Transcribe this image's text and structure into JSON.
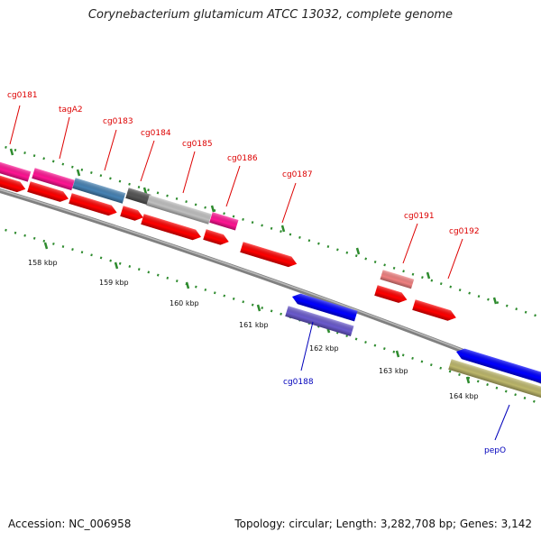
{
  "title": "Corynebacterium glutamicum ATCC 13032, complete genome",
  "footer": {
    "accession": "Accession: NC_006958",
    "stats": "Topology: circular; Length: 3,282,708 bp; Genes: 3,142"
  },
  "colors": {
    "red_gene": "#ff0000",
    "pink_gene": "#ff1493",
    "steel_gene": "#4682b4",
    "dark_gene": "#555555",
    "silver_gene": "#c0c0c0",
    "salmon_gene": "#f08080",
    "blue_gene": "#0000ff",
    "slate_gene": "#6a5acd",
    "khaki_gene": "#bdb76b",
    "tick_green": "#2e8b2e",
    "backbone": "#808080",
    "label_red": "#dd0000",
    "label_blue": "#0000bb"
  },
  "scale_labels": [
    "158 kbp",
    "159 kbp",
    "160 kbp",
    "161 kbp",
    "162 kbp",
    "163 kbp",
    "164 kbp"
  ],
  "forward_labels": [
    "cg0181",
    "tagA2",
    "cg0183",
    "cg0184",
    "cg0185",
    "cg0186",
    "cg0187",
    "cg0191",
    "cg0192"
  ],
  "reverse_labels": [
    "cg0188",
    "pepO"
  ]
}
